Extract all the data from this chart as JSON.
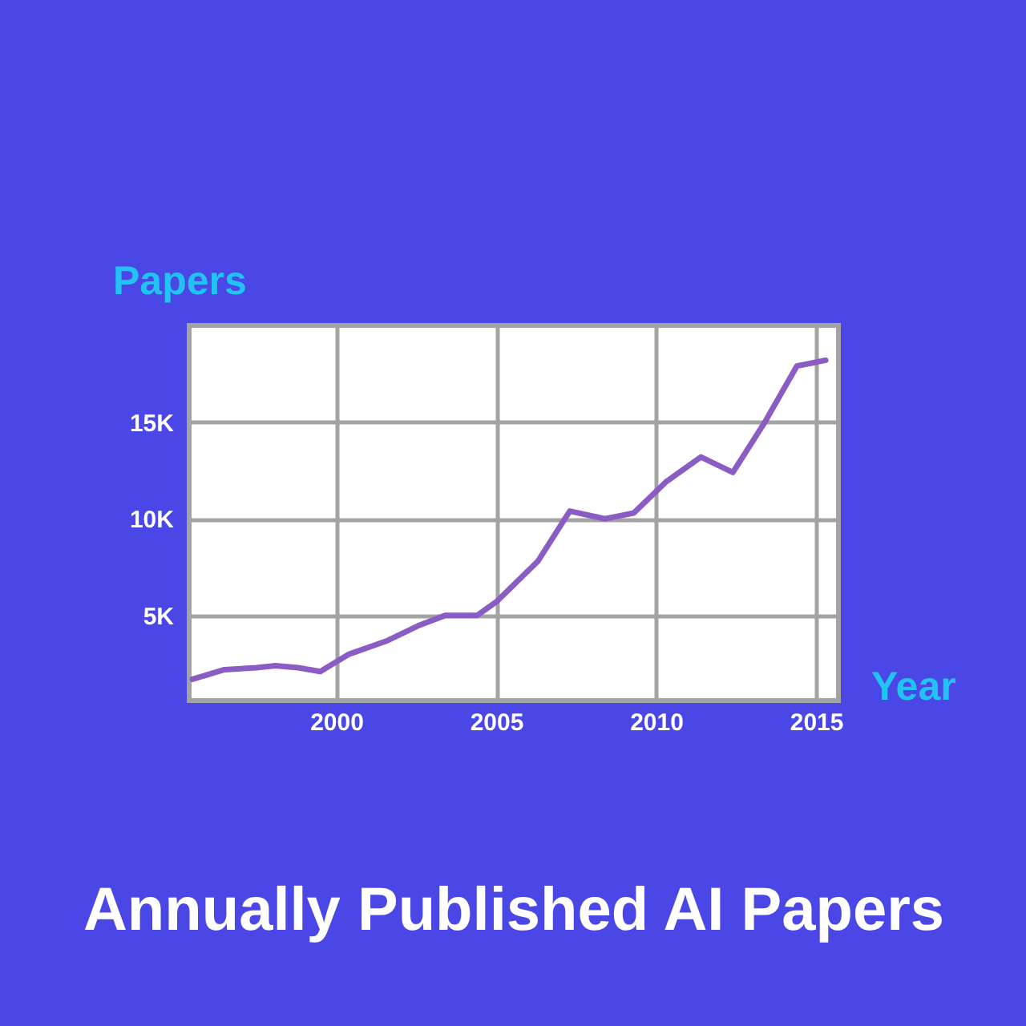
{
  "chart_data": {
    "type": "line",
    "title": "Annually Published AI Papers",
    "xlabel": "Year",
    "ylabel": "Papers",
    "x": [
      1995.5,
      1996.5,
      1997.5,
      1998.1,
      1998.8,
      1999.5,
      2000.4,
      2001.6,
      2002.6,
      2003.4,
      2004.4,
      2005.0,
      2006.3,
      2007.3,
      2008.4,
      2009.3,
      2010.3,
      2011.4,
      2012.4,
      2013.4,
      2014.4,
      2015.3
    ],
    "series": [
      {
        "color": "#8a5cc4",
        "values": [
          1700,
          2200,
          2300,
          2400,
          2300,
          2100,
          3000,
          3700,
          4500,
          5000,
          5000,
          5700,
          7800,
          10400,
          10000,
          10300,
          11900,
          13200,
          12400,
          15000,
          17900,
          18200
        ]
      }
    ],
    "xlim": [
      1995.4,
      2015.7
    ],
    "ylim": [
      600,
      20000
    ],
    "xticks": [
      2000,
      2005,
      2010,
      2015
    ],
    "yticks": [
      {
        "value": 5000,
        "label": "5K"
      },
      {
        "value": 10000,
        "label": "10K"
      },
      {
        "value": 15000,
        "label": "15K"
      }
    ],
    "grid": true,
    "line_style": "solid"
  }
}
